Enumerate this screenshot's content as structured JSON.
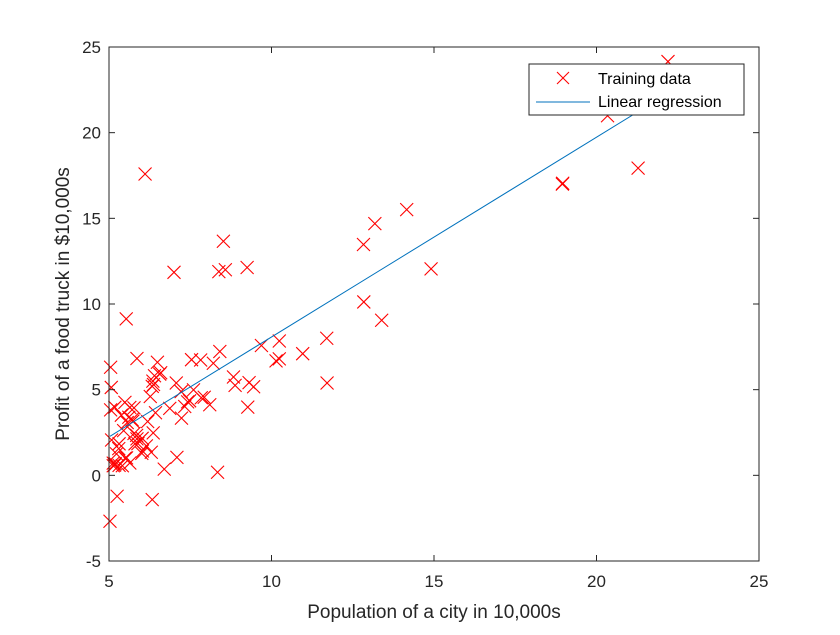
{
  "chart_data": {
    "type": "scatter",
    "title": "",
    "xlabel": "Population of a city in 10,000s",
    "ylabel": "Profit of a food truck in $10,000s",
    "xlim": [
      5,
      25
    ],
    "ylim": [
      -5,
      25
    ],
    "xticks": [
      "5",
      "10",
      "15",
      "20",
      "25"
    ],
    "yticks": [
      "-5",
      "0",
      "5",
      "10",
      "15",
      "20",
      "25"
    ],
    "grid": false,
    "legend_position": "top-right",
    "legend": [
      "Training data",
      "Linear regression"
    ],
    "series": [
      {
        "name": "Training data",
        "kind": "scatter",
        "marker": "x",
        "color": "#ff0000",
        "points": [
          [
            6.11,
            17.59
          ],
          [
            5.53,
            9.13
          ],
          [
            8.52,
            13.66
          ],
          [
            7.0,
            11.85
          ],
          [
            5.86,
            6.82
          ],
          [
            8.38,
            11.89
          ],
          [
            7.48,
            4.35
          ],
          [
            8.58,
            12.0
          ],
          [
            6.49,
            6.6
          ],
          [
            5.05,
            3.82
          ],
          [
            5.71,
            3.25
          ],
          [
            14.16,
            15.51
          ],
          [
            5.73,
            3.16
          ],
          [
            8.41,
            7.23
          ],
          [
            5.64,
            0.72
          ],
          [
            5.38,
            3.51
          ],
          [
            6.37,
            5.3
          ],
          [
            5.13,
            0.56
          ],
          [
            6.43,
            3.65
          ],
          [
            7.07,
            5.39
          ],
          [
            6.19,
            3.14
          ],
          [
            20.27,
            21.77
          ],
          [
            5.49,
            4.26
          ],
          [
            6.33,
            5.19
          ],
          [
            5.56,
            3.08
          ],
          [
            18.95,
            17.0
          ],
          [
            12.83,
            13.47
          ],
          [
            10.96,
            7.1
          ],
          [
            13.18,
            14.69
          ],
          [
            22.2,
            24.15
          ],
          [
            5.25,
            -1.22
          ],
          [
            6.59,
            5.99
          ],
          [
            9.25,
            12.13
          ],
          [
            5.89,
            1.85
          ],
          [
            8.21,
            6.54
          ],
          [
            7.93,
            4.56
          ],
          [
            8.1,
            4.12
          ],
          [
            5.61,
            3.39
          ],
          [
            12.84,
            10.12
          ],
          [
            6.35,
            5.5
          ],
          [
            5.41,
            0.56
          ],
          [
            6.87,
            3.91
          ],
          [
            11.71,
            5.39
          ],
          [
            5.77,
            2.44
          ],
          [
            7.82,
            6.73
          ],
          [
            7.09,
            1.05
          ],
          [
            5.07,
            5.13
          ],
          [
            5.8,
            1.84
          ],
          [
            11.7,
            8.0
          ],
          [
            5.54,
            1.02
          ],
          [
            7.54,
            6.75
          ],
          [
            5.31,
            1.84
          ],
          [
            7.42,
            4.29
          ],
          [
            7.6,
            4.99
          ],
          [
            6.03,
            1.42
          ],
          [
            6.33,
            -1.42
          ],
          [
            6.36,
            2.48
          ],
          [
            6.27,
            4.6
          ],
          [
            5.64,
            3.96
          ],
          [
            9.31,
            5.41
          ],
          [
            9.45,
            5.17
          ],
          [
            8.83,
            5.74
          ],
          [
            5.18,
            3.97
          ],
          [
            21.28,
            17.93
          ],
          [
            14.91,
            12.05
          ],
          [
            18.96,
            17.05
          ],
          [
            7.22,
            4.89
          ],
          [
            5.3,
            1.56
          ],
          [
            10.24,
            6.8
          ],
          [
            5.5,
            1.0
          ],
          [
            20.34,
            20.99
          ],
          [
            10.14,
            6.68
          ],
          [
            7.33,
            4.02
          ],
          [
            6.01,
            1.28
          ],
          [
            7.23,
            3.34
          ],
          [
            5.03,
            -2.68
          ],
          [
            10.24,
            7.84
          ],
          [
            5.08,
            2.06
          ],
          [
            5.13,
            0.71
          ],
          [
            5.86,
            2.13
          ],
          [
            6.3,
            1.35
          ],
          [
            8.88,
            5.25
          ],
          [
            13.39,
            9.05
          ],
          [
            9.27,
            3.98
          ],
          [
            6.7,
            0.36
          ],
          [
            5.31,
            0.58
          ],
          [
            5.45,
            2.61
          ],
          [
            6.4,
            5.81
          ],
          [
            6.15,
            1.72
          ],
          [
            7.84,
            4.53
          ],
          [
            5.77,
            3.94
          ],
          [
            6.02,
            2.16
          ],
          [
            8.34,
            0.18
          ],
          [
            6.56,
            5.91
          ],
          [
            5.05,
            6.31
          ],
          [
            5.23,
            1.25
          ],
          [
            5.17,
            0.6
          ],
          [
            5.85,
            2.33
          ],
          [
            9.69,
            7.58
          ],
          [
            5.19,
            0.68
          ]
        ]
      },
      {
        "name": "Linear regression",
        "kind": "line",
        "color": "#0072bd",
        "x": [
          5.03,
          22.2
        ],
        "y": [
          2.28,
          22.3
        ]
      }
    ]
  }
}
